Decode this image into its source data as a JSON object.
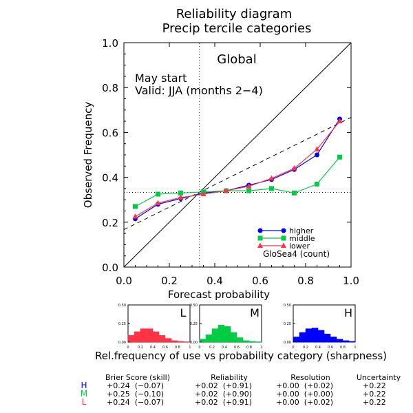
{
  "chart_data": {
    "title": "Reliability diagram",
    "subtitle": "Precip tercile categories",
    "region_label": "Global",
    "annotation_lines": [
      "May start",
      "Valid: JJA (months 2−4)"
    ],
    "xlabel": "Forecast probability",
    "ylabel": "Observed Frequency",
    "xlim": [
      0,
      1
    ],
    "ylim": [
      0,
      1
    ],
    "ticks": [
      "0.0",
      "0.2",
      "0.4",
      "0.6",
      "0.8",
      "1.0"
    ],
    "climatology": 0.333,
    "model_label": "GloSea4 (count)",
    "reliability": {
      "type": "line",
      "x": [
        0.05,
        0.15,
        0.25,
        0.35,
        0.45,
        0.55,
        0.65,
        0.75,
        0.85,
        0.95
      ],
      "series": [
        {
          "name": "higher",
          "color": "#0000ff",
          "marker": "circle",
          "values": [
            0.215,
            0.28,
            0.305,
            0.33,
            0.34,
            0.365,
            0.39,
            0.435,
            0.5,
            0.66
          ]
        },
        {
          "name": "middle",
          "color": "#00cc44",
          "marker": "square",
          "values": [
            0.27,
            0.325,
            0.33,
            0.335,
            0.34,
            0.34,
            0.35,
            0.33,
            0.37,
            0.49
          ]
        },
        {
          "name": "lower",
          "color": "#ff3344",
          "marker": "triangle",
          "values": [
            0.225,
            0.285,
            0.31,
            0.325,
            0.34,
            0.36,
            0.395,
            0.44,
            0.525,
            0.65
          ]
        }
      ],
      "reference_lines": {
        "perfect": [
          [
            0,
            0
          ],
          [
            1,
            1
          ]
        ],
        "skill": [
          [
            0,
            0.167
          ],
          [
            1,
            0.667
          ]
        ]
      }
    },
    "sharpness_title": "Rel.frequency of use vs probability category (sharpness)",
    "sharpness": {
      "type": "bar",
      "x_ticks": [
        "0",
        "0.2",
        "0.4",
        "0.6",
        "0.8",
        "1"
      ],
      "y_ticks": [
        "0.00",
        "0.25",
        "0.50"
      ],
      "ylim": [
        0,
        0.5
      ],
      "panels": [
        {
          "label": "L",
          "color": "#ff3344",
          "values": [
            0.09,
            0.14,
            0.18,
            0.18,
            0.14,
            0.09,
            0.05,
            0.02,
            0.01,
            0.005
          ]
        },
        {
          "label": "M",
          "color": "#00cc44",
          "values": [
            0.04,
            0.1,
            0.18,
            0.23,
            0.21,
            0.13,
            0.06,
            0.02,
            0.01,
            0.005
          ]
        },
        {
          "label": "H",
          "color": "#0000ff",
          "values": [
            0.07,
            0.13,
            0.18,
            0.19,
            0.16,
            0.11,
            0.07,
            0.04,
            0.02,
            0.01
          ]
        }
      ]
    },
    "scores": {
      "headers": [
        "Brier Score (skill)",
        "Reliability",
        "Resolution",
        "Uncertainty"
      ],
      "rows": [
        {
          "label": "H",
          "color": "#0000ff",
          "brier": "+0.24  (−0.07)",
          "reliability": "+0.02  (+0.91)",
          "resolution": "+0.00  (+0.02)",
          "uncertainty": "+0.22"
        },
        {
          "label": "M",
          "color": "#00cc44",
          "brier": "+0.25  (−0.10)",
          "reliability": "+0.02  (+0.90)",
          "resolution": "+0.00  (+0.00)",
          "uncertainty": "+0.22"
        },
        {
          "label": "L",
          "color": "#ff3344",
          "brier": "+0.24  (−0.07)",
          "reliability": "+0.02  (+0.91)",
          "resolution": "+0.00  (+0.02)",
          "uncertainty": "+0.22"
        }
      ]
    }
  }
}
